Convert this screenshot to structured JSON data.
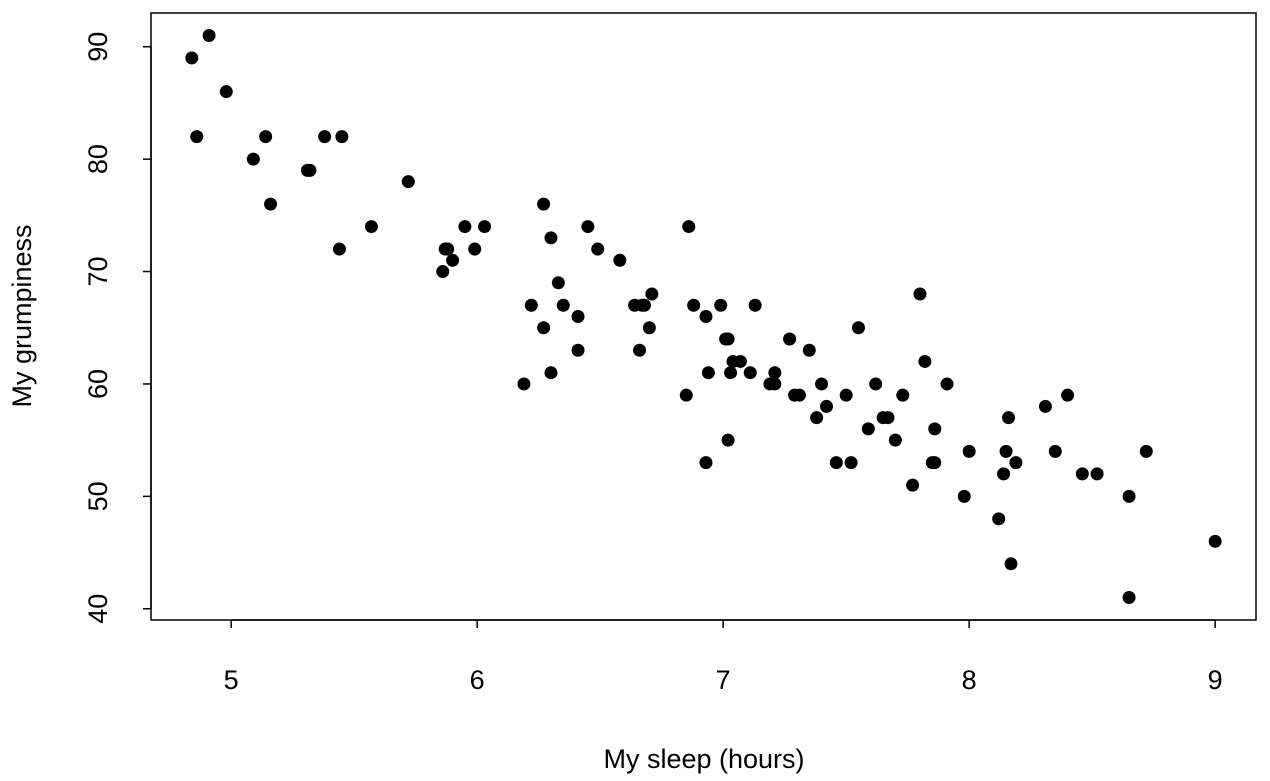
{
  "chart_data": {
    "type": "scatter",
    "title": "",
    "xlabel": "My sleep (hours)",
    "ylabel": "My grumpiness",
    "xlim": [
      4.674,
      9.166
    ],
    "ylim": [
      39,
      93
    ],
    "xticks": [
      5,
      6,
      7,
      8,
      9
    ],
    "yticks": [
      40,
      50,
      60,
      70,
      80,
      90
    ],
    "grid": false,
    "legend": "none",
    "point_color": "#000000",
    "points": [
      [
        4.84,
        89
      ],
      [
        4.91,
        91
      ],
      [
        4.86,
        82
      ],
      [
        4.98,
        86
      ],
      [
        5.09,
        80
      ],
      [
        5.14,
        82
      ],
      [
        5.16,
        76
      ],
      [
        5.31,
        79
      ],
      [
        5.32,
        79
      ],
      [
        5.38,
        82
      ],
      [
        5.45,
        82
      ],
      [
        5.44,
        72
      ],
      [
        5.57,
        74
      ],
      [
        5.72,
        78
      ],
      [
        5.87,
        72
      ],
      [
        5.88,
        72
      ],
      [
        5.86,
        70
      ],
      [
        5.9,
        71
      ],
      [
        5.95,
        74
      ],
      [
        5.99,
        72
      ],
      [
        6.03,
        74
      ],
      [
        6.19,
        60
      ],
      [
        6.22,
        67
      ],
      [
        6.27,
        76
      ],
      [
        6.27,
        65
      ],
      [
        6.3,
        73
      ],
      [
        6.3,
        61
      ],
      [
        6.33,
        69
      ],
      [
        6.35,
        67
      ],
      [
        6.41,
        66
      ],
      [
        6.41,
        63
      ],
      [
        6.45,
        74
      ],
      [
        6.49,
        72
      ],
      [
        6.58,
        71
      ],
      [
        6.64,
        67
      ],
      [
        6.67,
        67
      ],
      [
        6.68,
        67
      ],
      [
        6.66,
        63
      ],
      [
        6.7,
        65
      ],
      [
        6.71,
        68
      ],
      [
        6.85,
        59
      ],
      [
        6.86,
        74
      ],
      [
        6.88,
        67
      ],
      [
        6.93,
        66
      ],
      [
        6.93,
        53
      ],
      [
        6.94,
        61
      ],
      [
        6.99,
        67
      ],
      [
        7.01,
        64
      ],
      [
        7.02,
        64
      ],
      [
        7.02,
        55
      ],
      [
        7.04,
        62
      ],
      [
        7.03,
        61
      ],
      [
        7.07,
        62
      ],
      [
        7.11,
        61
      ],
      [
        7.13,
        67
      ],
      [
        7.19,
        60
      ],
      [
        7.21,
        60
      ],
      [
        7.21,
        61
      ],
      [
        7.27,
        64
      ],
      [
        7.29,
        59
      ],
      [
        7.31,
        59
      ],
      [
        7.35,
        63
      ],
      [
        7.38,
        57
      ],
      [
        7.4,
        60
      ],
      [
        7.42,
        58
      ],
      [
        7.46,
        53
      ],
      [
        7.5,
        59
      ],
      [
        7.52,
        53
      ],
      [
        7.55,
        65
      ],
      [
        7.59,
        56
      ],
      [
        7.62,
        60
      ],
      [
        7.65,
        57
      ],
      [
        7.67,
        57
      ],
      [
        7.7,
        55
      ],
      [
        7.73,
        59
      ],
      [
        7.77,
        51
      ],
      [
        7.8,
        68
      ],
      [
        7.82,
        62
      ],
      [
        7.85,
        53
      ],
      [
        7.86,
        53
      ],
      [
        7.86,
        56
      ],
      [
        7.91,
        60
      ],
      [
        7.98,
        50
      ],
      [
        8.0,
        54
      ],
      [
        8.12,
        48
      ],
      [
        8.14,
        52
      ],
      [
        8.15,
        54
      ],
      [
        8.16,
        57
      ],
      [
        8.17,
        44
      ],
      [
        8.19,
        53
      ],
      [
        8.31,
        58
      ],
      [
        8.35,
        54
      ],
      [
        8.4,
        59
      ],
      [
        8.46,
        52
      ],
      [
        8.52,
        52
      ],
      [
        8.65,
        50
      ],
      [
        8.65,
        41
      ],
      [
        8.72,
        54
      ],
      [
        9.0,
        46
      ]
    ]
  }
}
